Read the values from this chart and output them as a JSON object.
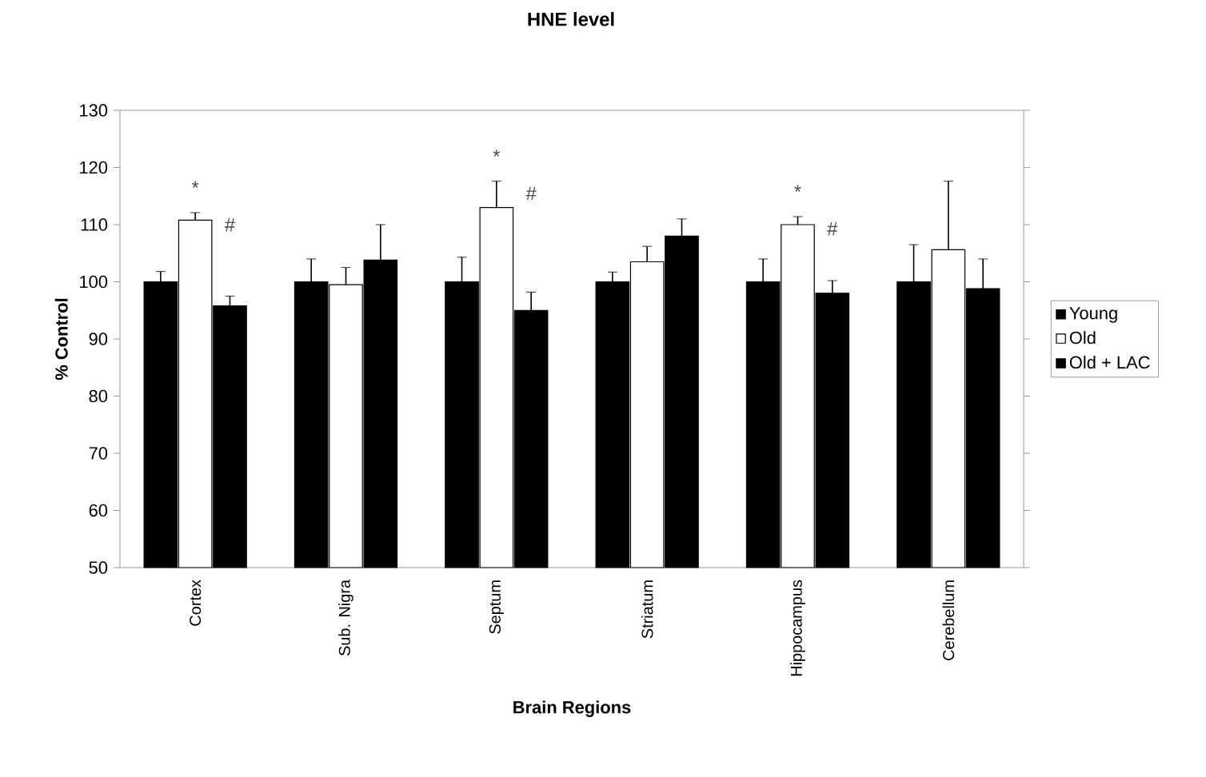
{
  "chart_data": {
    "type": "bar",
    "title": "HNE level",
    "xlabel": "Brain Regions",
    "ylabel": "% Control",
    "categories": [
      "Cortex",
      "Sub. Nigra",
      "Septum",
      "Striatum",
      "Hippocampus",
      "Cerebellum"
    ],
    "series": [
      {
        "name": "Young",
        "color": "#000000",
        "values": [
          100,
          100,
          100,
          100,
          100,
          100
        ],
        "errors": [
          1.8,
          4,
          4.3,
          1.7,
          4,
          6.5
        ]
      },
      {
        "name": "Old",
        "color": "#ffffff",
        "values": [
          110.8,
          99.5,
          113,
          103.5,
          110,
          105.6
        ],
        "errors": [
          1.3,
          3,
          4.6,
          2.7,
          1.4,
          12
        ]
      },
      {
        "name": "Old + LAC",
        "color": "#000000",
        "values": [
          95.8,
          103.8,
          95,
          108,
          98,
          98.8
        ],
        "errors": [
          1.7,
          6.2,
          3.2,
          3,
          2.2,
          5.2
        ]
      }
    ],
    "ylim": [
      50,
      130
    ],
    "yticks": [
      50,
      60,
      70,
      80,
      90,
      100,
      110,
      120,
      130
    ],
    "legend": "right",
    "grid": false,
    "annotations": [
      "*",
      "#",
      "*",
      "#",
      "*",
      "#"
    ]
  }
}
